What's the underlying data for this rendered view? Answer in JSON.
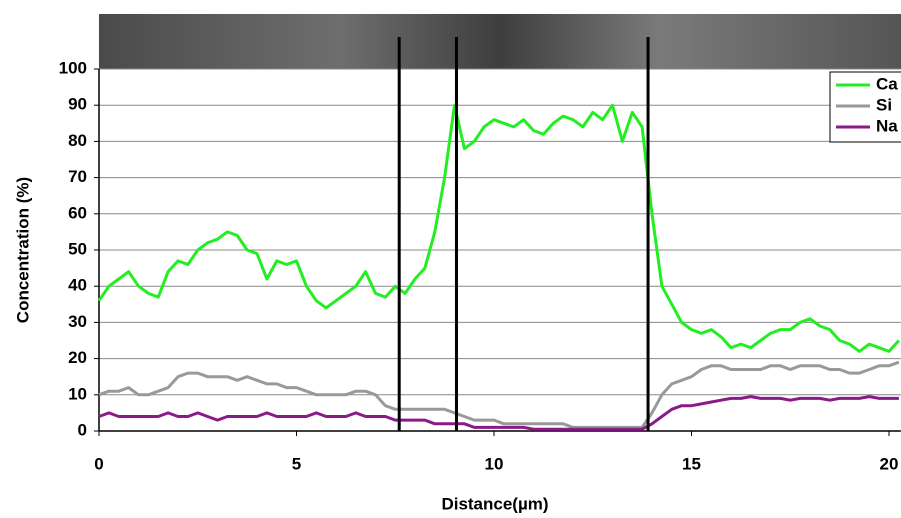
{
  "chart_data": {
    "type": "line",
    "xlabel": "Distance(µm)",
    "ylabel": "Concentration (%)",
    "xlim": [
      0,
      20.3
    ],
    "ylim": [
      0,
      100
    ],
    "xticks": [
      0,
      5,
      10,
      15,
      20
    ],
    "yticks": [
      0,
      10,
      20,
      30,
      40,
      50,
      60,
      70,
      80,
      90,
      100
    ],
    "grid": true,
    "legend": "upper right",
    "vertical_lines": [
      7.6,
      9.05,
      13.9
    ],
    "x": [
      0,
      0.25,
      0.5,
      0.75,
      1,
      1.25,
      1.5,
      1.75,
      2,
      2.25,
      2.5,
      2.75,
      3,
      3.25,
      3.5,
      3.75,
      4,
      4.25,
      4.5,
      4.75,
      5,
      5.25,
      5.5,
      5.75,
      6,
      6.25,
      6.5,
      6.75,
      7,
      7.25,
      7.5,
      7.75,
      8,
      8.25,
      8.5,
      8.75,
      9,
      9.25,
      9.5,
      9.75,
      10,
      10.25,
      10.5,
      10.75,
      11,
      11.25,
      11.5,
      11.75,
      12,
      12.25,
      12.5,
      12.75,
      13,
      13.25,
      13.5,
      13.75,
      14,
      14.25,
      14.5,
      14.75,
      15,
      15.25,
      15.5,
      15.75,
      16,
      16.25,
      16.5,
      16.75,
      17,
      17.25,
      17.5,
      17.75,
      18,
      18.25,
      18.5,
      18.75,
      19,
      19.25,
      19.5,
      19.75,
      20,
      20.25
    ],
    "series": [
      {
        "name": "Ca",
        "color": "#22ee22",
        "values": [
          36,
          40,
          42,
          44,
          40,
          38,
          37,
          44,
          47,
          46,
          50,
          52,
          53,
          55,
          54,
          50,
          49,
          42,
          47,
          46,
          47,
          40,
          36,
          34,
          36,
          38,
          40,
          44,
          38,
          37,
          40,
          38,
          42,
          45,
          55,
          70,
          90,
          78,
          80,
          84,
          86,
          85,
          84,
          86,
          83,
          82,
          85,
          87,
          86,
          84,
          88,
          86,
          90,
          80,
          88,
          84,
          60,
          40,
          35,
          30,
          28,
          27,
          28,
          26,
          23,
          24,
          23,
          25,
          27,
          28,
          28,
          30,
          31,
          29,
          28,
          25,
          24,
          22,
          24,
          23,
          22,
          25
        ]
      },
      {
        "name": "Si",
        "color": "#999999",
        "values": [
          10,
          11,
          11,
          12,
          10,
          10,
          11,
          12,
          15,
          16,
          16,
          15,
          15,
          15,
          14,
          15,
          14,
          13,
          13,
          12,
          12,
          11,
          10,
          10,
          10,
          10,
          11,
          11,
          10,
          7,
          6,
          6,
          6,
          6,
          6,
          6,
          5,
          4,
          3,
          3,
          3,
          2,
          2,
          2,
          2,
          2,
          2,
          2,
          1,
          1,
          1,
          1,
          1,
          1,
          1,
          1,
          5,
          10,
          13,
          14,
          15,
          17,
          18,
          18,
          17,
          17,
          17,
          17,
          18,
          18,
          17,
          18,
          18,
          18,
          17,
          17,
          16,
          16,
          17,
          18,
          18,
          19
        ]
      },
      {
        "name": "Na",
        "color": "#8b1a89",
        "values": [
          4,
          5,
          4,
          4,
          4,
          4,
          4,
          5,
          4,
          4,
          5,
          4,
          3,
          4,
          4,
          4,
          4,
          5,
          4,
          4,
          4,
          4,
          5,
          4,
          4,
          4,
          5,
          4,
          4,
          4,
          3,
          3,
          3,
          3,
          2,
          2,
          2,
          2,
          1,
          1,
          1,
          1,
          1,
          1,
          0.5,
          0.5,
          0.5,
          0.5,
          0.5,
          0.5,
          0.5,
          0.5,
          0.5,
          0.5,
          0.5,
          0.5,
          2,
          4,
          6,
          7,
          7,
          7.5,
          8,
          8.5,
          9,
          9,
          9.5,
          9,
          9,
          9,
          8.5,
          9,
          9,
          9,
          8.5,
          9,
          9,
          9,
          9.5,
          9,
          9,
          9
        ]
      }
    ]
  }
}
